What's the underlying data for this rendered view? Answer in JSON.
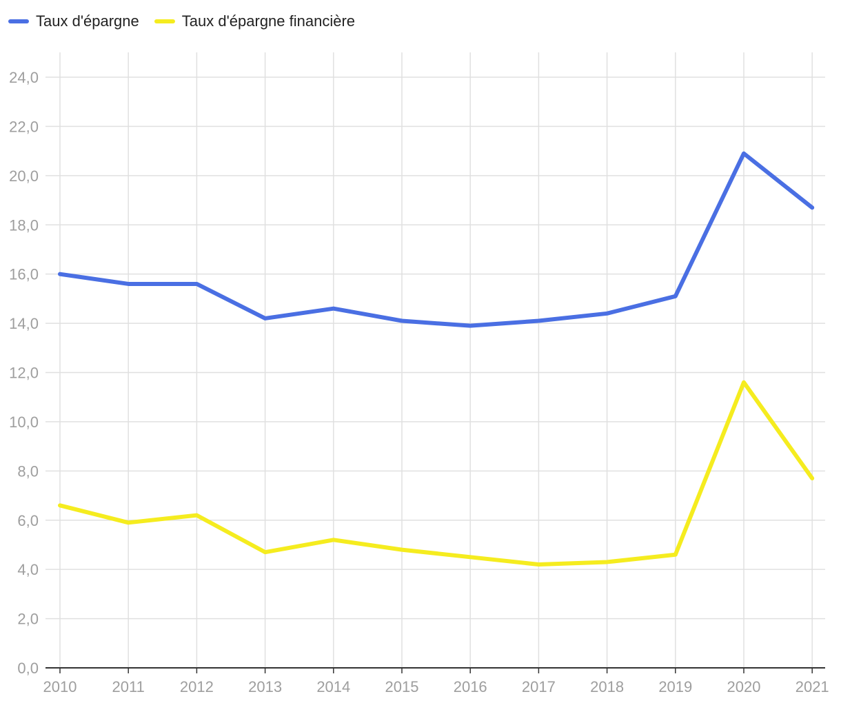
{
  "chart_data": {
    "type": "line",
    "categories": [
      "2010",
      "2011",
      "2012",
      "2013",
      "2014",
      "2015",
      "2016",
      "2017",
      "2018",
      "2019",
      "2020",
      "2021"
    ],
    "series": [
      {
        "name": "Taux d'épargne",
        "color": "#4a6fe3",
        "values": [
          16.0,
          15.6,
          15.6,
          14.2,
          14.6,
          14.1,
          13.9,
          14.1,
          14.4,
          15.1,
          20.9,
          18.7
        ]
      },
      {
        "name": "Taux d'épargne financière",
        "color": "#f5ec1f",
        "values": [
          6.6,
          5.9,
          6.2,
          4.7,
          5.2,
          4.8,
          4.5,
          4.2,
          4.3,
          4.6,
          11.6,
          7.7
        ]
      }
    ],
    "yticks": [
      "0,0",
      "2,0",
      "4,0",
      "6,0",
      "8,0",
      "10,0",
      "12,0",
      "14,0",
      "16,0",
      "18,0",
      "20,0",
      "22,0",
      "24,0"
    ],
    "ylim": [
      0,
      24
    ],
    "grid": true,
    "legend_position": "top-left",
    "title": "",
    "xlabel": "",
    "ylabel": ""
  }
}
